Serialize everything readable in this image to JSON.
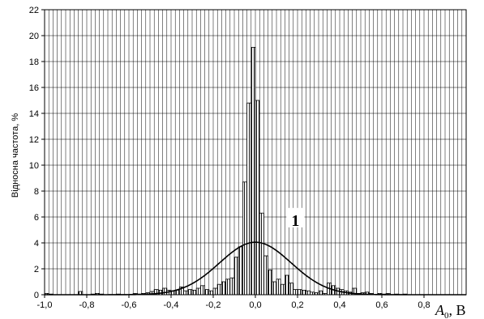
{
  "chart_data": {
    "type": "bar",
    "title": "",
    "ylabel": "Відносна частота, %",
    "xlabel_main": "A",
    "xlabel_sub": "0",
    "xlabel_unit": ", В",
    "xlim": [
      -1.0,
      1.0
    ],
    "ylim": [
      0,
      22
    ],
    "bin_width": 0.02,
    "grid": true,
    "x_ticks": [
      -1.0,
      -0.8,
      -0.6,
      -0.4,
      -0.2,
      0.0,
      0.2,
      0.4,
      0.6,
      0.8
    ],
    "x_tick_labels": [
      "-1,0",
      "-0,8",
      "-0,6",
      "-0,4",
      "-0,2",
      "0,0",
      "0,2",
      "0,4",
      "0,6",
      "0,8"
    ],
    "y_ticks": [
      0,
      2,
      4,
      6,
      8,
      10,
      12,
      14,
      16,
      18,
      20,
      22
    ],
    "y_tick_labels": [
      "0",
      "2",
      "4",
      "6",
      "8",
      "10",
      "12",
      "14",
      "16",
      "18",
      "20",
      "22"
    ],
    "bin_starts": [
      -1.0,
      -0.98,
      -0.96,
      -0.94,
      -0.92,
      -0.9,
      -0.88,
      -0.86,
      -0.84,
      -0.82,
      -0.8,
      -0.78,
      -0.76,
      -0.74,
      -0.72,
      -0.7,
      -0.68,
      -0.66,
      -0.64,
      -0.62,
      -0.6,
      -0.58,
      -0.56,
      -0.54,
      -0.52,
      -0.5,
      -0.48,
      -0.46,
      -0.44,
      -0.42,
      -0.4,
      -0.38,
      -0.36,
      -0.34,
      -0.32,
      -0.3,
      -0.28,
      -0.26,
      -0.24,
      -0.22,
      -0.2,
      -0.18,
      -0.16,
      -0.14,
      -0.12,
      -0.1,
      -0.08,
      -0.06,
      -0.04,
      -0.02,
      0.0,
      0.02,
      0.04,
      0.06,
      0.08,
      0.1,
      0.12,
      0.14,
      0.16,
      0.18,
      0.2,
      0.22,
      0.24,
      0.26,
      0.28,
      0.3,
      0.32,
      0.34,
      0.36,
      0.38,
      0.4,
      0.42,
      0.44,
      0.46,
      0.48,
      0.5,
      0.52,
      0.54,
      0.56,
      0.58,
      0.6,
      0.62,
      0.64,
      0.66,
      0.68,
      0.7,
      0.72,
      0.74,
      0.76,
      0.78,
      0.8,
      0.82,
      0.84,
      0.86,
      0.88,
      0.9,
      0.92,
      0.94,
      0.96,
      0.98
    ],
    "values": [
      0.1,
      0.05,
      0,
      0,
      0,
      0,
      0,
      0,
      0.25,
      0,
      0,
      0.05,
      0.1,
      0.05,
      0,
      0,
      0,
      0.05,
      0,
      0,
      0,
      0.1,
      0.05,
      0.1,
      0.15,
      0.25,
      0.4,
      0.35,
      0.5,
      0.35,
      0.3,
      0.35,
      0.6,
      0.3,
      0.4,
      0.35,
      0.5,
      0.7,
      0.4,
      0.3,
      0.5,
      0.8,
      1.0,
      1.2,
      1.3,
      2.9,
      3.7,
      8.7,
      14.8,
      19.1,
      15.0,
      6.3,
      3.0,
      1.9,
      1.0,
      1.2,
      0.8,
      1.5,
      0.9,
      0.4,
      0.4,
      0.35,
      0.3,
      0.2,
      0.15,
      0.3,
      0.1,
      0.9,
      0.7,
      0.5,
      0.4,
      0.3,
      0.2,
      0.5,
      0.1,
      0.15,
      0.2,
      0.1,
      0,
      0.1,
      0.05,
      0.1,
      0,
      0.05,
      0,
      0.05,
      0,
      0,
      0,
      0,
      0,
      0,
      0,
      0,
      0,
      0,
      0,
      0,
      0,
      0
    ],
    "curve": {
      "type": "normal",
      "mean": 0.0,
      "sigma": 0.17,
      "peak": 4.05,
      "label": "1",
      "label_x": 0.19,
      "label_y": 5.7
    }
  }
}
